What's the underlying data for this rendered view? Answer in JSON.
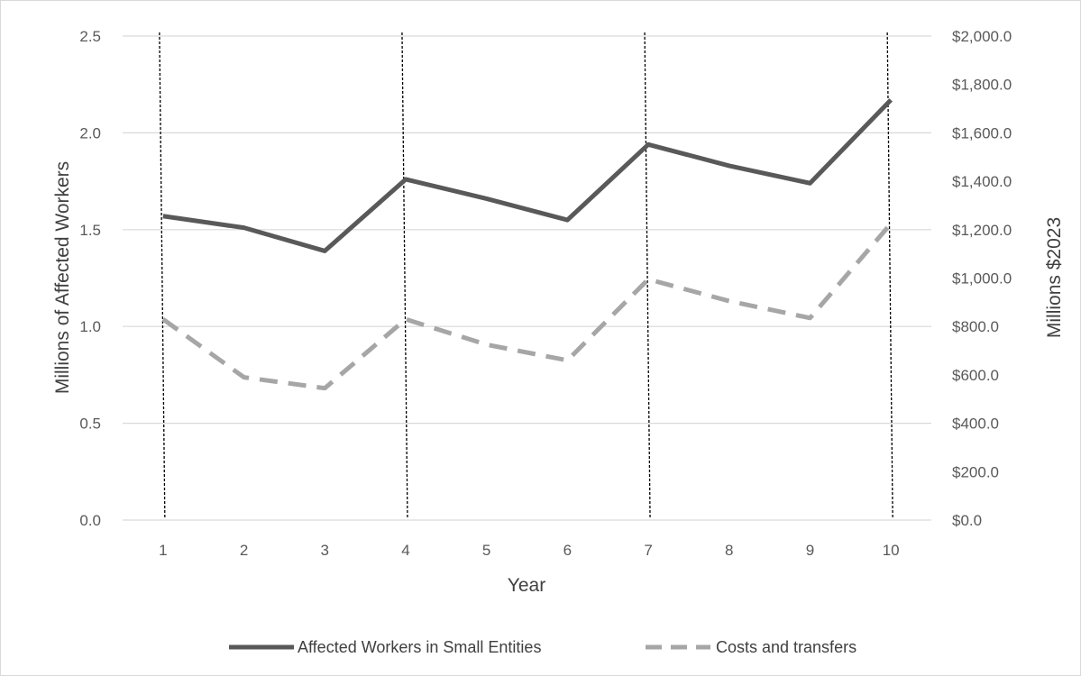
{
  "chart_data": {
    "type": "line",
    "title": "",
    "xlabel": "Year",
    "ylabel_left": "Millions of Affected Workers",
    "ylabel_right": "Millions $2023",
    "categories": [
      "1",
      "2",
      "3",
      "4",
      "5",
      "6",
      "7",
      "8",
      "9",
      "10"
    ],
    "ylim_left": [
      0,
      2.5
    ],
    "ylim_right": [
      0,
      2000
    ],
    "yticks_left": [
      "0.0",
      "0.5",
      "1.0",
      "1.5",
      "2.0",
      "2.5"
    ],
    "yticks_right": [
      "$0.0",
      "$200.0",
      "$400.0",
      "$600.0",
      "$800.0",
      "$1,000.0",
      "$1,200.0",
      "$1,400.0",
      "$1,600.0",
      "$1,800.0",
      "$2,000.0"
    ],
    "grid": true,
    "legend_position": "bottom",
    "series": [
      {
        "name": "Affected Workers in Small Entities",
        "axis": "left",
        "style": "solid",
        "color": "#595959",
        "values": [
          1.57,
          1.51,
          1.39,
          1.76,
          1.66,
          1.55,
          1.94,
          1.83,
          1.74,
          2.17
        ]
      },
      {
        "name": "Costs and transfers",
        "axis": "right",
        "style": "dashed",
        "color": "#a6a6a6",
        "values": [
          830,
          590,
          545,
          830,
          725,
          660,
          995,
          905,
          835,
          1225
        ]
      }
    ],
    "vertical_markers_at": [
      "1",
      "4",
      "7",
      "10"
    ]
  }
}
